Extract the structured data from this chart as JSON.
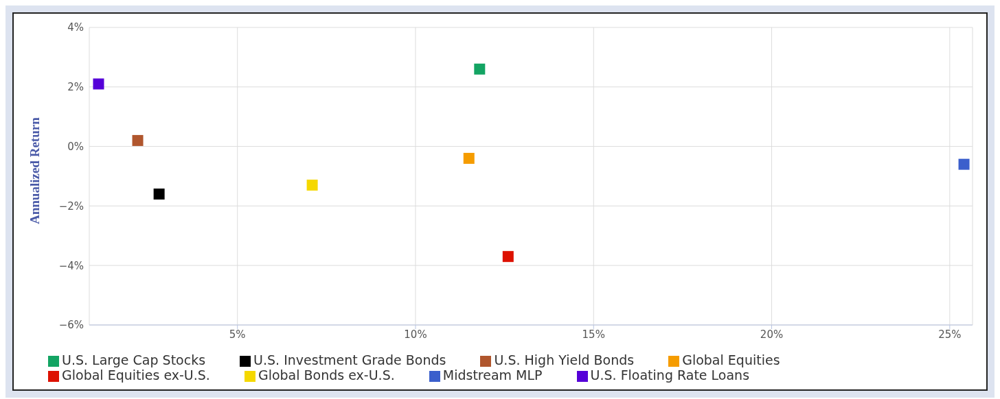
{
  "chart_data": {
    "type": "scatter",
    "ylabel": "Annualized Return",
    "xlim": [
      0.84,
      25.64
    ],
    "xticks": [
      {
        "value": 5,
        "label": "5%"
      },
      {
        "value": 10,
        "label": "10%"
      },
      {
        "value": 15,
        "label": "15%"
      },
      {
        "value": 20,
        "label": "20%"
      },
      {
        "value": 25,
        "label": "25%"
      }
    ],
    "ylim": [
      -6,
      4
    ],
    "yticks": [
      {
        "value": -6,
        "label": "−6%"
      },
      {
        "value": -4,
        "label": "−4%"
      },
      {
        "value": -2,
        "label": "−2%"
      },
      {
        "value": 0,
        "label": "0%"
      },
      {
        "value": 2,
        "label": "2%"
      },
      {
        "value": 4,
        "label": "4%"
      }
    ],
    "grid": true,
    "legend": "bottom",
    "marker": "square",
    "series": [
      {
        "name": "U.S. Large Cap Stocks",
        "color": "#13a463",
        "x": [
          11.8
        ],
        "values": [
          2.6
        ]
      },
      {
        "name": "U.S. Investment Grade Bonds",
        "color": "#000000",
        "x": [
          2.8
        ],
        "values": [
          -1.6
        ]
      },
      {
        "name": "U.S. High Yield Bonds",
        "color": "#b0562d",
        "x": [
          2.2
        ],
        "values": [
          0.2
        ]
      },
      {
        "name": "Global Equities",
        "color": "#f59c00",
        "x": [
          11.5
        ],
        "values": [
          -0.4
        ]
      },
      {
        "name": "Global Equities ex-U.S.",
        "color": "#dd1100",
        "x": [
          12.6
        ],
        "values": [
          -3.7
        ]
      },
      {
        "name": "Global Bonds ex-U.S.",
        "color": "#f5d800",
        "x": [
          7.1
        ],
        "values": [
          -1.3
        ]
      },
      {
        "name": "Midstream MLP",
        "color": "#3b5fcc",
        "x": [
          25.4
        ],
        "values": [
          -0.6
        ]
      },
      {
        "name": "U.S. Floating Rate Loans",
        "color": "#5500d8",
        "x": [
          1.1
        ],
        "values": [
          2.1
        ]
      }
    ]
  }
}
